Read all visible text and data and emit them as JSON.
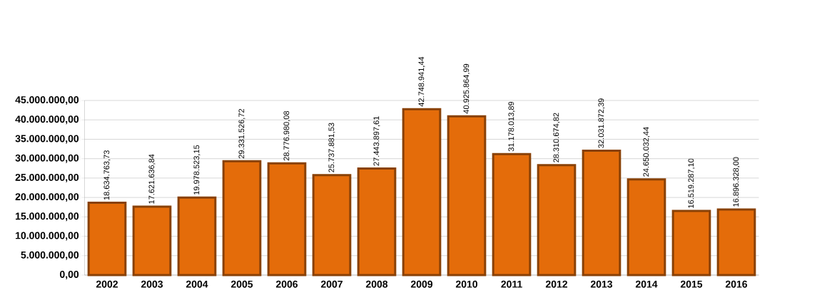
{
  "chart_data": {
    "type": "bar",
    "categories": [
      "2002",
      "2003",
      "2004",
      "2005",
      "2006",
      "2007",
      "2008",
      "2009",
      "2010",
      "2011",
      "2012",
      "2013",
      "2014",
      "2015",
      "2016"
    ],
    "values": [
      18634763.73,
      17621636.84,
      19978523.15,
      29331526.72,
      28776980.08,
      25737881.53,
      27443897.61,
      42748941.44,
      40925864.99,
      31178013.89,
      28310674.82,
      32031872.39,
      24650032.44,
      16519287.1,
      16896328.0
    ],
    "value_labels": [
      "18.634.763,73",
      "17.621.636,84",
      "19.978.523,15",
      "29.331.526,72",
      "28.776.980,08",
      "25.737.881,53",
      "27.443.897,61",
      "42.748.941,44",
      "40.925.864,99",
      "31.178.013,89",
      "28.310.674,82",
      "32.031.872,39",
      "24.650.032,44",
      "16.519.287,10",
      "16.896.328,00"
    ],
    "color": "#e46c0a",
    "ylim": [
      0,
      45000000
    ],
    "yticks": [
      {
        "value": 0,
        "label": "0,00"
      },
      {
        "value": 5000000,
        "label": "5.000.000,00"
      },
      {
        "value": 10000000,
        "label": "10.000.000,00"
      },
      {
        "value": 15000000,
        "label": "15.000.000,00"
      },
      {
        "value": 20000000,
        "label": "20.000.000,00"
      },
      {
        "value": 25000000,
        "label": "25.000.000,00"
      },
      {
        "value": 30000000,
        "label": "30.000.000,00"
      },
      {
        "value": 35000000,
        "label": "35.000.000,00"
      },
      {
        "value": 40000000,
        "label": "40.000.000,00"
      },
      {
        "value": 45000000,
        "label": "45.000.000,00"
      }
    ],
    "grid": "y"
  }
}
